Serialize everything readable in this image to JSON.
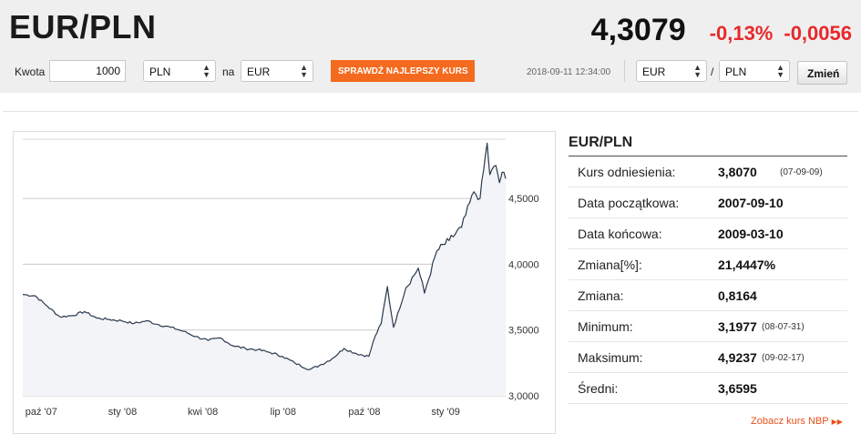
{
  "header": {
    "pair": "EUR/PLN",
    "rate": "4,3079",
    "change_pct": "-0,13%",
    "change_abs": "-0,0056"
  },
  "toolbar": {
    "amount_label": "Kwota",
    "amount_value": "1000",
    "from_currency": "PLN",
    "to_label": "na",
    "to_currency": "EUR",
    "best_rate_button": "SPRAWDŹ NAJLEPSZY KURS",
    "timestamp": "2018-09-11 12:34:00",
    "pair_base": "EUR",
    "pair_separator": "/",
    "pair_quote": "PLN",
    "change_button": "Zmień"
  },
  "stats": {
    "title": "EUR/PLN",
    "rows": [
      {
        "label": "Kurs odniesienia:",
        "value": "3,8070",
        "date": "(07-09-09)"
      },
      {
        "label": "Data początkowa:",
        "value": "2007-09-10",
        "date": ""
      },
      {
        "label": "Data końcowa:",
        "value": "2009-03-10",
        "date": ""
      },
      {
        "label": "Zmiana[%]:",
        "value": "21,4447%",
        "date": ""
      },
      {
        "label": "Zmiana:",
        "value": "0,8164",
        "date": ""
      },
      {
        "label": "Minimum:",
        "value": "3,1977",
        "date": "(08-07-31)"
      },
      {
        "label": "Maksimum:",
        "value": "4,9237",
        "date": "(09-02-17)"
      },
      {
        "label": "Średni:",
        "value": "3,6595",
        "date": ""
      }
    ],
    "link_text": "Zobacz kurs NBP"
  },
  "chart_data": {
    "type": "line",
    "x_tick_labels": [
      "paź '07",
      "sty '08",
      "kwi '08",
      "lip '08",
      "paź '08",
      "sty '09"
    ],
    "y_tick_labels": [
      "3,0000",
      "3,5000",
      "4,0000",
      "4,5000"
    ],
    "ylim": [
      3.0,
      4.95
    ],
    "grid": true,
    "series": [
      {
        "color": "#2a3a4e",
        "x": [
          "2007-09-10",
          "2007-09-24",
          "2007-10-08",
          "2007-10-22",
          "2007-11-05",
          "2007-11-19",
          "2007-12-03",
          "2007-12-17",
          "2007-12-31",
          "2008-01-14",
          "2008-01-28",
          "2008-02-11",
          "2008-02-25",
          "2008-03-10",
          "2008-03-24",
          "2008-04-07",
          "2008-04-21",
          "2008-05-05",
          "2008-05-19",
          "2008-06-02",
          "2008-06-16",
          "2008-06-30",
          "2008-07-14",
          "2008-07-31",
          "2008-08-11",
          "2008-08-25",
          "2008-09-08",
          "2008-09-22",
          "2008-10-06",
          "2008-10-13",
          "2008-10-20",
          "2008-10-27",
          "2008-11-03",
          "2008-11-17",
          "2008-12-01",
          "2008-12-08",
          "2008-12-22",
          "2009-01-05",
          "2009-01-19",
          "2009-02-02",
          "2009-02-09",
          "2009-02-17",
          "2009-02-20",
          "2009-02-27",
          "2009-03-03",
          "2009-03-06",
          "2009-03-10"
        ],
        "y": [
          3.77,
          3.76,
          3.68,
          3.6,
          3.61,
          3.64,
          3.59,
          3.58,
          3.57,
          3.55,
          3.57,
          3.54,
          3.52,
          3.49,
          3.45,
          3.42,
          3.44,
          3.38,
          3.36,
          3.35,
          3.33,
          3.3,
          3.25,
          3.2,
          3.23,
          3.28,
          3.36,
          3.32,
          3.3,
          3.45,
          3.55,
          3.83,
          3.52,
          3.82,
          3.97,
          3.78,
          4.1,
          4.18,
          4.28,
          4.55,
          4.5,
          4.92,
          4.68,
          4.75,
          4.62,
          4.7,
          4.65
        ]
      }
    ]
  }
}
